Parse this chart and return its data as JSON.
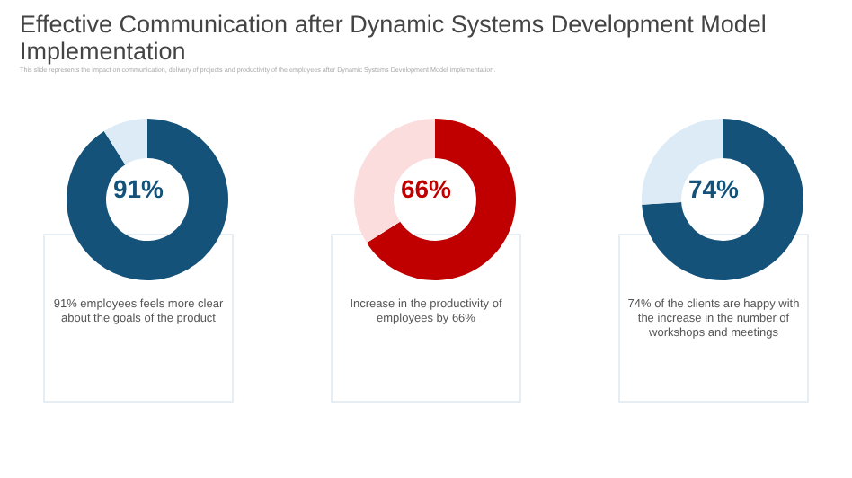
{
  "chart_data": [
    {
      "type": "donut",
      "title": "Effective Communication after Dynamic Systems Development Model Implementation",
      "subtitle": "This slide represents the impact on communication, delivery of projects and productivity of the employees after Dynamic Systems Development Model implementation.",
      "categories": [
        null,
        null
      ],
      "values": [
        91,
        9
      ],
      "colors": [
        "#14527a",
        "#dcebf6"
      ],
      "annotations": [
        "91%",
        "91% employees feels more clear about the goals of the product"
      ]
    },
    {
      "type": "donut",
      "categories": [
        null,
        null
      ],
      "values": [
        66,
        34
      ],
      "colors": [
        "#c00000",
        "#fbdddd"
      ],
      "annotations": [
        "66%",
        "Increase in the productivity of employees by 66%"
      ]
    },
    {
      "type": "donut",
      "categories": [
        null,
        null
      ],
      "values": [
        74,
        26
      ],
      "colors": [
        "#14527a",
        "#dcebf6"
      ],
      "annotations": [
        "74%",
        "74% of the clients are happy with the increase in the number of workshops and meetings"
      ]
    }
  ]
}
